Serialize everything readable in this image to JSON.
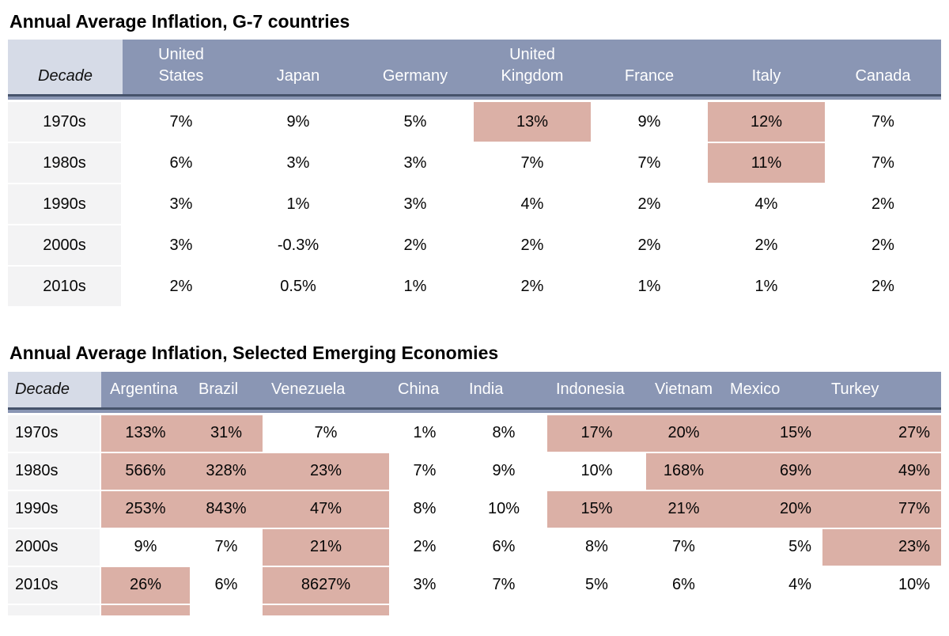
{
  "chart_data": [
    {
      "type": "table",
      "title": "Annual Average Inflation, G-7 countries",
      "decade_column_label": "Decade",
      "columns": [
        "United\nStates",
        "Japan",
        "Germany",
        "United\nKingdom",
        "France",
        "Italy",
        "Canada"
      ],
      "rows": [
        {
          "decade": "1970s",
          "values": [
            "7%",
            "9%",
            "5%",
            "13%",
            "9%",
            "12%",
            "7%"
          ],
          "highlighted": [
            false,
            false,
            false,
            true,
            false,
            true,
            false
          ]
        },
        {
          "decade": "1980s",
          "values": [
            "6%",
            "3%",
            "3%",
            "7%",
            "7%",
            "11%",
            "7%"
          ],
          "highlighted": [
            false,
            false,
            false,
            false,
            false,
            true,
            false
          ]
        },
        {
          "decade": "1990s",
          "values": [
            "3%",
            "1%",
            "3%",
            "4%",
            "2%",
            "4%",
            "2%"
          ],
          "highlighted": [
            false,
            false,
            false,
            false,
            false,
            false,
            false
          ]
        },
        {
          "decade": "2000s",
          "values": [
            "3%",
            "-0.3%",
            "2%",
            "2%",
            "2%",
            "2%",
            "2%"
          ],
          "highlighted": [
            false,
            false,
            false,
            false,
            false,
            false,
            false
          ]
        },
        {
          "decade": "2010s",
          "values": [
            "2%",
            "0.5%",
            "1%",
            "2%",
            "1%",
            "1%",
            "2%"
          ],
          "highlighted": [
            false,
            false,
            false,
            false,
            false,
            false,
            false
          ]
        }
      ]
    },
    {
      "type": "table",
      "title": "Annual Average Inflation, Selected Emerging Economies",
      "decade_column_label": "Decade",
      "columns": [
        "Argentina",
        "Brazil",
        "Venezuela",
        "China",
        "India",
        "Indonesia",
        "Vietnam",
        "Mexico",
        "Turkey"
      ],
      "rows": [
        {
          "decade": "1970s",
          "values": [
            "133%",
            "31%",
            "7%",
            "1%",
            "8%",
            "17%",
            "20%",
            "15%",
            "27%"
          ],
          "highlighted": [
            true,
            true,
            false,
            false,
            false,
            true,
            true,
            true,
            true
          ]
        },
        {
          "decade": "1980s",
          "values": [
            "566%",
            "328%",
            "23%",
            "7%",
            "9%",
            "10%",
            "168%",
            "69%",
            "49%"
          ],
          "highlighted": [
            true,
            true,
            true,
            false,
            false,
            false,
            true,
            true,
            true
          ]
        },
        {
          "decade": "1990s",
          "values": [
            "253%",
            "843%",
            "47%",
            "8%",
            "10%",
            "15%",
            "21%",
            "20%",
            "77%"
          ],
          "highlighted": [
            true,
            true,
            true,
            false,
            false,
            true,
            true,
            true,
            true
          ]
        },
        {
          "decade": "2000s",
          "values": [
            "9%",
            "7%",
            "21%",
            "2%",
            "6%",
            "8%",
            "7%",
            "5%",
            "23%"
          ],
          "highlighted": [
            false,
            false,
            true,
            false,
            false,
            false,
            false,
            false,
            true
          ]
        },
        {
          "decade": "2010s",
          "values": [
            "26%",
            "6%",
            "8627%",
            "3%",
            "7%",
            "5%",
            "6%",
            "4%",
            "10%"
          ],
          "highlighted": [
            true,
            false,
            true,
            false,
            false,
            false,
            false,
            false,
            false
          ]
        }
      ],
      "partial_next_row_highlighted": [
        true,
        false,
        true,
        false,
        false,
        false,
        false,
        false,
        false
      ]
    }
  ],
  "colors": {
    "header_fill": "#8a96b4",
    "decade_header_fill": "#d6dbe7",
    "highlight_fill": "#dbb0a6",
    "decade_cell_fill": "#f3f3f4",
    "header_underline_dark": "#46536b",
    "title_text": "#000000",
    "header_text": "#ffffff",
    "value_text": "#060606"
  }
}
